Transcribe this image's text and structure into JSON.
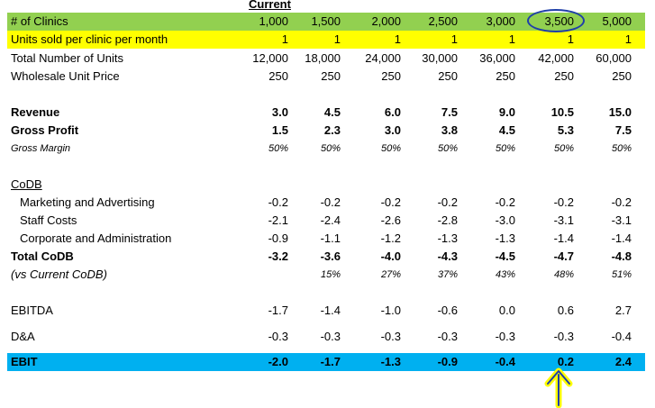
{
  "header": {
    "current_label": "Current"
  },
  "columns": [
    "1,000",
    "1,500",
    "2,000",
    "2,500",
    "3,000",
    "3,500",
    "5,000"
  ],
  "rows": [
    {
      "label": "# of Clinics",
      "values": [
        "1,000",
        "1,500",
        "2,000",
        "2,500",
        "3,000",
        "3,500",
        "5,000"
      ]
    },
    {
      "label": "Units sold per clinic per month",
      "values": [
        "1",
        "1",
        "1",
        "1",
        "1",
        "1",
        "1"
      ]
    },
    {
      "label": "Total Number of Units",
      "values": [
        "12,000",
        "18,000",
        "24,000",
        "30,000",
        "36,000",
        "42,000",
        "60,000"
      ]
    },
    {
      "label": "Wholesale Unit Price",
      "values": [
        "250",
        "250",
        "250",
        "250",
        "250",
        "250",
        "250"
      ]
    },
    {
      "label": "Revenue",
      "values": [
        "3.0",
        "4.5",
        "6.0",
        "7.5",
        "9.0",
        "10.5",
        "15.0"
      ]
    },
    {
      "label": "Gross Profit",
      "values": [
        "1.5",
        "2.3",
        "3.0",
        "3.8",
        "4.5",
        "5.3",
        "7.5"
      ]
    },
    {
      "label": "Gross Margin",
      "values": [
        "50%",
        "50%",
        "50%",
        "50%",
        "50%",
        "50%",
        "50%"
      ]
    },
    {
      "label": "CoDB",
      "values": []
    },
    {
      "label": "Marketing and Advertising",
      "values": [
        "-0.2",
        "-0.2",
        "-0.2",
        "-0.2",
        "-0.2",
        "-0.2",
        "-0.2"
      ]
    },
    {
      "label": "Staff Costs",
      "values": [
        "-2.1",
        "-2.4",
        "-2.6",
        "-2.8",
        "-3.0",
        "-3.1",
        "-3.1"
      ]
    },
    {
      "label": "Corporate and Administration",
      "values": [
        "-0.9",
        "-1.1",
        "-1.2",
        "-1.3",
        "-1.3",
        "-1.4",
        "-1.4"
      ]
    },
    {
      "label": "Total CoDB",
      "values": [
        "-3.2",
        "-3.6",
        "-4.0",
        "-4.3",
        "-4.5",
        "-4.7",
        "-4.8"
      ]
    },
    {
      "label": "(vs Current CoDB)",
      "values": [
        "",
        "15%",
        "27%",
        "37%",
        "43%",
        "48%",
        "51%"
      ]
    },
    {
      "label": "EBITDA",
      "values": [
        "-1.7",
        "-1.4",
        "-1.0",
        "-0.6",
        "0.0",
        "0.6",
        "2.7"
      ]
    },
    {
      "label": "D&A",
      "values": [
        "-0.3",
        "-0.3",
        "-0.3",
        "-0.3",
        "-0.3",
        "-0.3",
        "-0.4"
      ]
    },
    {
      "label": "EBIT",
      "values": [
        "-2.0",
        "-1.7",
        "-1.3",
        "-0.9",
        "-0.4",
        "0.2",
        "2.4"
      ]
    }
  ],
  "colors": {
    "green": "#92d050",
    "yellow": "#ffff00",
    "blue": "#00b0f0",
    "annotation": "#1f3fa8",
    "arrow": "#ffff00"
  },
  "icons": {
    "highlight": "circle-annotation",
    "pointer": "up-arrow-annotation"
  }
}
